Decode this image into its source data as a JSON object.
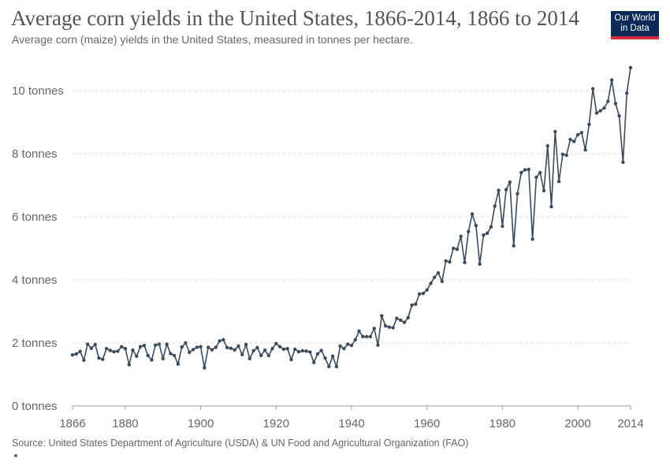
{
  "header": {
    "title": "Average corn yields in the United States, 1866-2014, 1866 to 2014",
    "subtitle": "Average corn (maize) yields in the United States, measured in tonnes per hectare.",
    "logo_line1": "Our World",
    "logo_line2": "in Data"
  },
  "footer": {
    "source": "Source: United States Department of Agriculture (USDA) & UN Food and Agricultural Organization (FAO)"
  },
  "colors": {
    "series": "#3b4b5c",
    "grid": "#dddddd",
    "axis": "#666666",
    "logo_bg": "#0b2a55",
    "logo_accent": "#d8283a"
  },
  "chart_data": {
    "type": "line",
    "title": "Average corn yields in the United States, 1866-2014, 1866 to 2014",
    "xlabel": "",
    "ylabel": "",
    "xlim": [
      1866,
      2014
    ],
    "ylim": [
      0,
      11
    ],
    "x_ticks": [
      1866,
      1880,
      1900,
      1920,
      1940,
      1960,
      1980,
      2000,
      2014
    ],
    "y_ticks": [
      0,
      2,
      4,
      6,
      8,
      10
    ],
    "y_tick_labels": [
      "0 tonnes",
      "2 tonnes",
      "4 tonnes",
      "6 tonnes",
      "8 tonnes",
      "10 tonnes"
    ],
    "grid": "horizontal-dashed",
    "series": [
      {
        "x": [
          1866,
          1867,
          1868,
          1869,
          1870,
          1871,
          1872,
          1873,
          1874,
          1875,
          1876,
          1877,
          1878,
          1879,
          1880,
          1881,
          1882,
          1883,
          1884,
          1885,
          1886,
          1887,
          1888,
          1889,
          1890,
          1891,
          1892,
          1893,
          1894,
          1895,
          1896,
          1897,
          1898,
          1899,
          1900,
          1901,
          1902,
          1903,
          1904,
          1905,
          1906,
          1907,
          1908,
          1909,
          1910,
          1911,
          1912,
          1913,
          1914,
          1915,
          1916,
          1917,
          1918,
          1919,
          1920,
          1921,
          1922,
          1923,
          1924,
          1925,
          1926,
          1927,
          1928,
          1929,
          1930,
          1931,
          1932,
          1933,
          1934,
          1935,
          1936,
          1937,
          1938,
          1939,
          1940,
          1941,
          1942,
          1943,
          1944,
          1945,
          1946,
          1947,
          1948,
          1949,
          1950,
          1951,
          1952,
          1953,
          1954,
          1955,
          1956,
          1957,
          1958,
          1959,
          1960,
          1961,
          1962,
          1963,
          1964,
          1965,
          1966,
          1967,
          1968,
          1969,
          1970,
          1971,
          1972,
          1973,
          1974,
          1975,
          1976,
          1977,
          1978,
          1979,
          1980,
          1981,
          1982,
          1983,
          1984,
          1985,
          1986,
          1987,
          1988,
          1989,
          1990,
          1991,
          1992,
          1993,
          1994,
          1995,
          1996,
          1997,
          1998,
          1999,
          2000,
          2001,
          2002,
          2003,
          2004,
          2005,
          2006,
          2007,
          2008,
          2009,
          2010,
          2011,
          2012,
          2013,
          2014
        ],
        "values": [
          1.62,
          1.65,
          1.73,
          1.45,
          1.96,
          1.83,
          1.95,
          1.52,
          1.48,
          1.82,
          1.76,
          1.72,
          1.74,
          1.88,
          1.82,
          1.31,
          1.77,
          1.58,
          1.88,
          1.92,
          1.6,
          1.46,
          1.93,
          1.96,
          1.5,
          1.96,
          1.66,
          1.6,
          1.33,
          1.87,
          2.0,
          1.7,
          1.79,
          1.86,
          1.88,
          1.21,
          1.86,
          1.78,
          1.86,
          2.06,
          2.1,
          1.85,
          1.83,
          1.78,
          1.9,
          1.63,
          1.95,
          1.5,
          1.75,
          1.85,
          1.6,
          1.77,
          1.6,
          1.82,
          1.98,
          1.88,
          1.8,
          1.82,
          1.47,
          1.8,
          1.72,
          1.75,
          1.74,
          1.71,
          1.38,
          1.65,
          1.76,
          1.52,
          1.25,
          1.58,
          1.25,
          1.9,
          1.82,
          1.96,
          1.92,
          2.1,
          2.37,
          2.2,
          2.2,
          2.2,
          2.46,
          1.93,
          2.86,
          2.54,
          2.5,
          2.48,
          2.78,
          2.72,
          2.65,
          2.8,
          3.2,
          3.23,
          3.55,
          3.57,
          3.68,
          3.89,
          4.08,
          4.22,
          3.95,
          4.6,
          4.57,
          5.0,
          4.97,
          5.38,
          4.55,
          5.53,
          6.09,
          5.72,
          4.5,
          5.42,
          5.48,
          5.68,
          6.34,
          6.84,
          5.7,
          6.86,
          7.1,
          5.08,
          6.73,
          7.4,
          7.49,
          7.5,
          5.29,
          7.25,
          7.4,
          6.83,
          8.25,
          6.32,
          8.7,
          7.12,
          7.98,
          7.95,
          8.45,
          8.39,
          8.6,
          8.67,
          8.12,
          8.93,
          10.06,
          9.29,
          9.36,
          9.45,
          9.66,
          10.34,
          9.59,
          9.2,
          7.73,
          9.92,
          10.73
        ]
      }
    ]
  }
}
